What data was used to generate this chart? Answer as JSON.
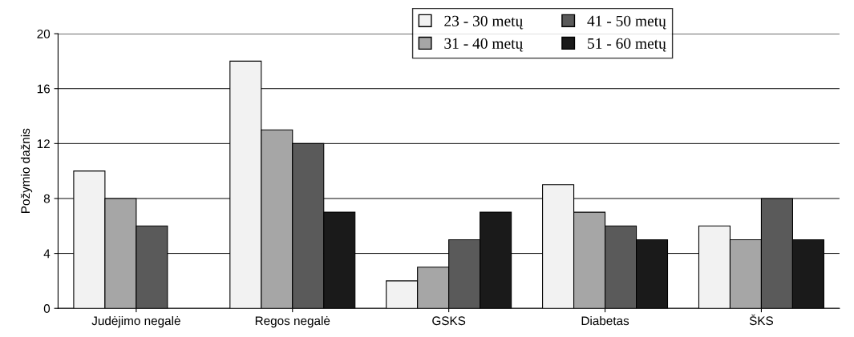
{
  "chart_data": {
    "type": "bar",
    "ylabel": "Požymio dažnis",
    "categories": [
      "Judėjimo negalė",
      "Regos negalė",
      "GSKS",
      "Diabetas",
      "ŠKS"
    ],
    "series": [
      {
        "name": "23 - 30 metų",
        "color": "#f2f2f2",
        "values": [
          10,
          18,
          2,
          9,
          6
        ]
      },
      {
        "name": "31 - 40 metų",
        "color": "#a6a6a6",
        "values": [
          8,
          13,
          3,
          7,
          5
        ]
      },
      {
        "name": "41 - 50 metų",
        "color": "#5a5a5a",
        "values": [
          6,
          12,
          5,
          6,
          8
        ]
      },
      {
        "name": "51 - 60 metų",
        "color": "#1a1a1a",
        "values": [
          null,
          7,
          7,
          5,
          5
        ]
      }
    ],
    "ylim": [
      0,
      20
    ],
    "yticks": [
      0,
      4,
      8,
      12,
      16,
      20
    ],
    "grid": "y",
    "legend": "top"
  }
}
